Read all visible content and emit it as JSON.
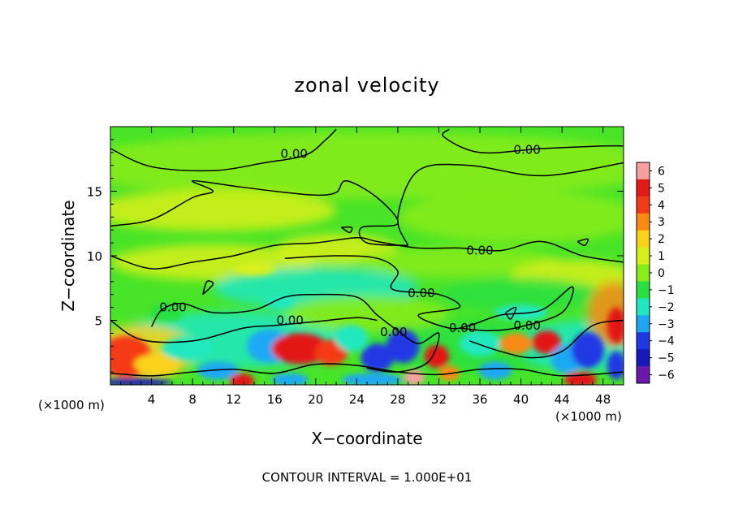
{
  "chart_data": {
    "type": "heatmap",
    "title": "zonal velocity",
    "xlabel": "X−coordinate",
    "ylabel": "Z−coordinate",
    "x_unit_left": "(×1000 m)",
    "x_unit_right": "(×1000 m)",
    "xlim": [
      0,
      50
    ],
    "ylim": [
      0,
      20
    ],
    "x_ticks": [
      4,
      8,
      12,
      16,
      20,
      24,
      28,
      32,
      36,
      40,
      44,
      48
    ],
    "y_ticks": [
      5,
      10,
      15
    ],
    "colorbar": {
      "range": [
        -6,
        6
      ],
      "ticks": [
        6,
        5,
        4,
        3,
        2,
        1,
        0,
        -1,
        -2,
        -3,
        -4,
        -5,
        -6
      ],
      "tick_labels": [
        "6",
        "5",
        "4",
        "3",
        "2",
        "1",
        "0",
        "−1",
        "−2",
        "−3",
        "−4",
        "−5",
        "−6"
      ],
      "colors": [
        "#f6a0a0",
        "#e31818",
        "#f53a18",
        "#fa8a14",
        "#fad21a",
        "#d8f01a",
        "#88ec18",
        "#28e040",
        "#20e8c0",
        "#1ea8f4",
        "#2038e4",
        "#1818b8",
        "#6a18b0"
      ]
    },
    "contour_labels": [
      {
        "text": "0.00",
        "x": 17.9,
        "y": 17.9
      },
      {
        "text": "0.00",
        "x": 40.6,
        "y": 18.2
      },
      {
        "text": "0.00",
        "x": 36.0,
        "y": 10.4
      },
      {
        "text": "0.00",
        "x": 30.3,
        "y": 7.1
      },
      {
        "text": "0.00",
        "x": 6.1,
        "y": 6.0
      },
      {
        "text": "0.00",
        "x": 17.5,
        "y": 5.0
      },
      {
        "text": "0.00",
        "x": 27.6,
        "y": 4.1
      },
      {
        "text": "0.00",
        "x": 34.3,
        "y": 4.4
      },
      {
        "text": "0.00",
        "x": 40.6,
        "y": 4.6
      }
    ],
    "footer": "CONTOUR INTERVAL = 1.000E+01"
  }
}
